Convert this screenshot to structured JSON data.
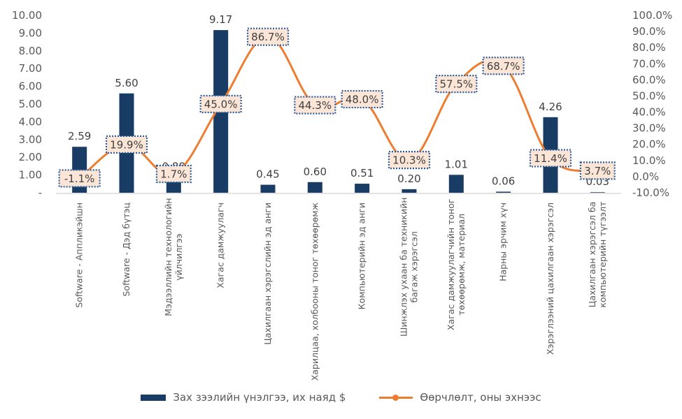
{
  "chart_data": {
    "type": "bar+line",
    "title": "",
    "categories": [
      [
        "Software - Аппликэйшн"
      ],
      [
        "Software - Дэд бүтэц"
      ],
      [
        "Мэдээллийн технологийн",
        "үйлчилгээ"
      ],
      [
        "Хагас дамжуулагч"
      ],
      [
        "Цахилгаан хэрэгслийн эд анги"
      ],
      [
        "Харилцаа, холбооны тоног төхөөрөмж"
      ],
      [
        "Компьютерийн эд анги"
      ],
      [
        "Шинжлэх ухаан ба техникийн",
        "багаж хэрэгсэл"
      ],
      [
        "Хагас дамжуулагчийн тоног",
        "төхөөрөмж, материал"
      ],
      [
        "Нарны эрчим хүч"
      ],
      [
        "Хэрэглээний цахилгаан хэрэгсэл"
      ],
      [
        "Цахилгаан хэрэгсэл ба",
        "компьютерийн түгээлт"
      ]
    ],
    "series": [
      {
        "name": "Зах зээлийн үнэлгээ, их наяд $",
        "type": "bar",
        "axis": "left",
        "color": "#183c63",
        "values": [
          2.59,
          5.6,
          0.88,
          9.17,
          0.45,
          0.6,
          0.51,
          0.2,
          1.01,
          0.06,
          4.26,
          0.03
        ],
        "labels": [
          "2.59",
          "5.60",
          "0.88",
          "9.17",
          "0.45",
          "0.60",
          "0.51",
          "0.20",
          "1.01",
          "0.06",
          "4.26",
          "0.03"
        ]
      },
      {
        "name": "Өөрчлөлт, оны эхнээс",
        "type": "line",
        "axis": "right",
        "color": "#ed7d31",
        "values": [
          -1.1,
          19.9,
          1.7,
          45.0,
          86.7,
          44.3,
          48.0,
          10.3,
          57.5,
          68.7,
          11.4,
          3.7
        ],
        "labels": [
          "-1.1%",
          "19.9%",
          "1.7%",
          "45.0%",
          "86.7%",
          "44.3%",
          "48.0%",
          "10.3%",
          "57.5%",
          "68.7%",
          "11.4%",
          "3.7%"
        ]
      }
    ],
    "y_left": {
      "ylim": [
        0,
        10
      ],
      "ticks": [
        0,
        1,
        2,
        3,
        4,
        5,
        6,
        7,
        8,
        9,
        10
      ],
      "tick_labels": [
        "-",
        "1.00",
        "2.00",
        "3.00",
        "4.00",
        "5.00",
        "6.00",
        "7.00",
        "8.00",
        "9.00",
        "10.00"
      ]
    },
    "y_right": {
      "ylim": [
        -10,
        100
      ],
      "ticks": [
        -10,
        0,
        10,
        20,
        30,
        40,
        50,
        60,
        70,
        80,
        90,
        100
      ],
      "tick_labels": [
        "-10.0%",
        "0.0%",
        "10.0%",
        "20.0%",
        "30.0%",
        "40.0%",
        "50.0%",
        "60.0%",
        "70.0%",
        "80.0%",
        "90.0%",
        "100.0%"
      ]
    },
    "grid": false,
    "legend_position": "bottom",
    "label_box": {
      "fill": "#fbe5d6",
      "border": "#2e5c9a"
    },
    "axis_color": "#d9d9d9"
  },
  "legend": {
    "bar_label": "Зах зээлийн үнэлгээ, их наяд $",
    "line_label": "Өөрчлөлт, оны эхнээс"
  }
}
